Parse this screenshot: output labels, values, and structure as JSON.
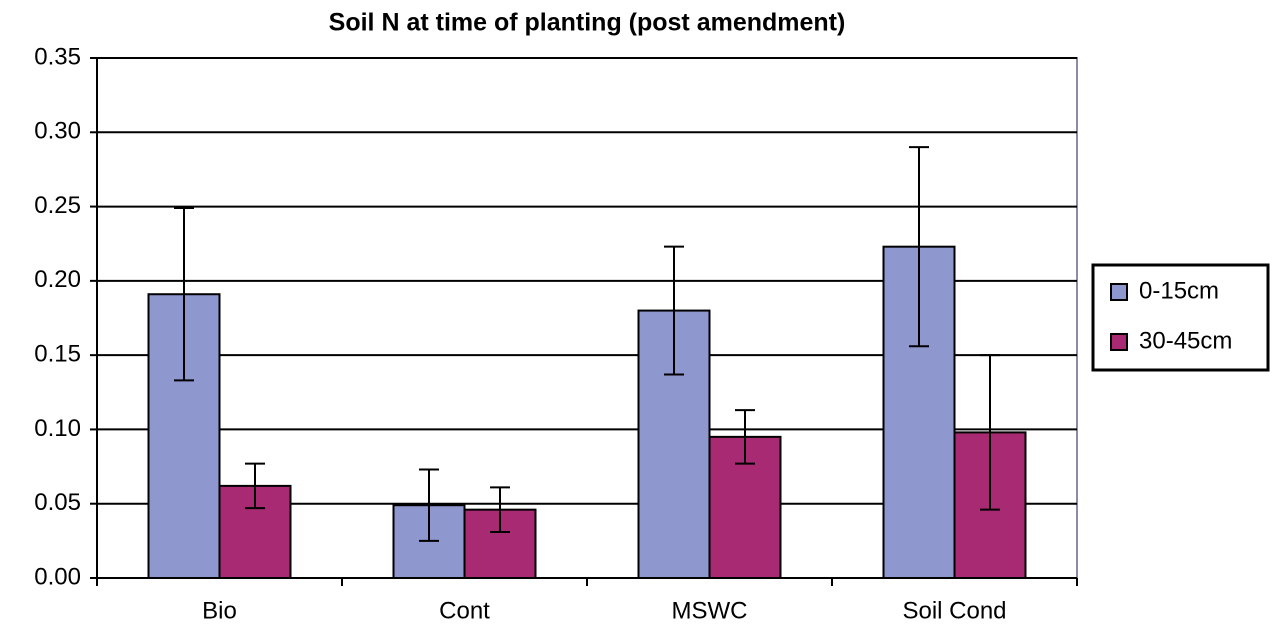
{
  "chart_data": {
    "type": "bar",
    "title": "Soil N at time of planting (post amendment)",
    "categories": [
      "Bio",
      "Cont",
      "MSWC",
      "Soil Cond"
    ],
    "series": [
      {
        "name": "0-15cm",
        "color": "#8f97cf",
        "values": [
          0.191,
          0.049,
          0.18,
          0.223
        ],
        "errors": [
          0.058,
          0.024,
          0.043,
          0.067
        ]
      },
      {
        "name": "30-45cm",
        "color": "#a82a73",
        "values": [
          0.062,
          0.046,
          0.095,
          0.098
        ],
        "errors": [
          0.015,
          0.015,
          0.018,
          0.052
        ]
      }
    ],
    "ylim": [
      0,
      0.35
    ],
    "yticks": [
      {
        "value": 0,
        "label": "0.00"
      },
      {
        "value": 0.05,
        "label": "0.05"
      },
      {
        "value": 0.1,
        "label": "0.10"
      },
      {
        "value": 0.15,
        "label": "0.15"
      },
      {
        "value": 0.2,
        "label": "0.20"
      },
      {
        "value": 0.25,
        "label": "0.25"
      },
      {
        "value": 0.3,
        "label": "0.30"
      },
      {
        "value": 0.35,
        "label": "0.35"
      }
    ],
    "grid": true,
    "legend": "right"
  }
}
